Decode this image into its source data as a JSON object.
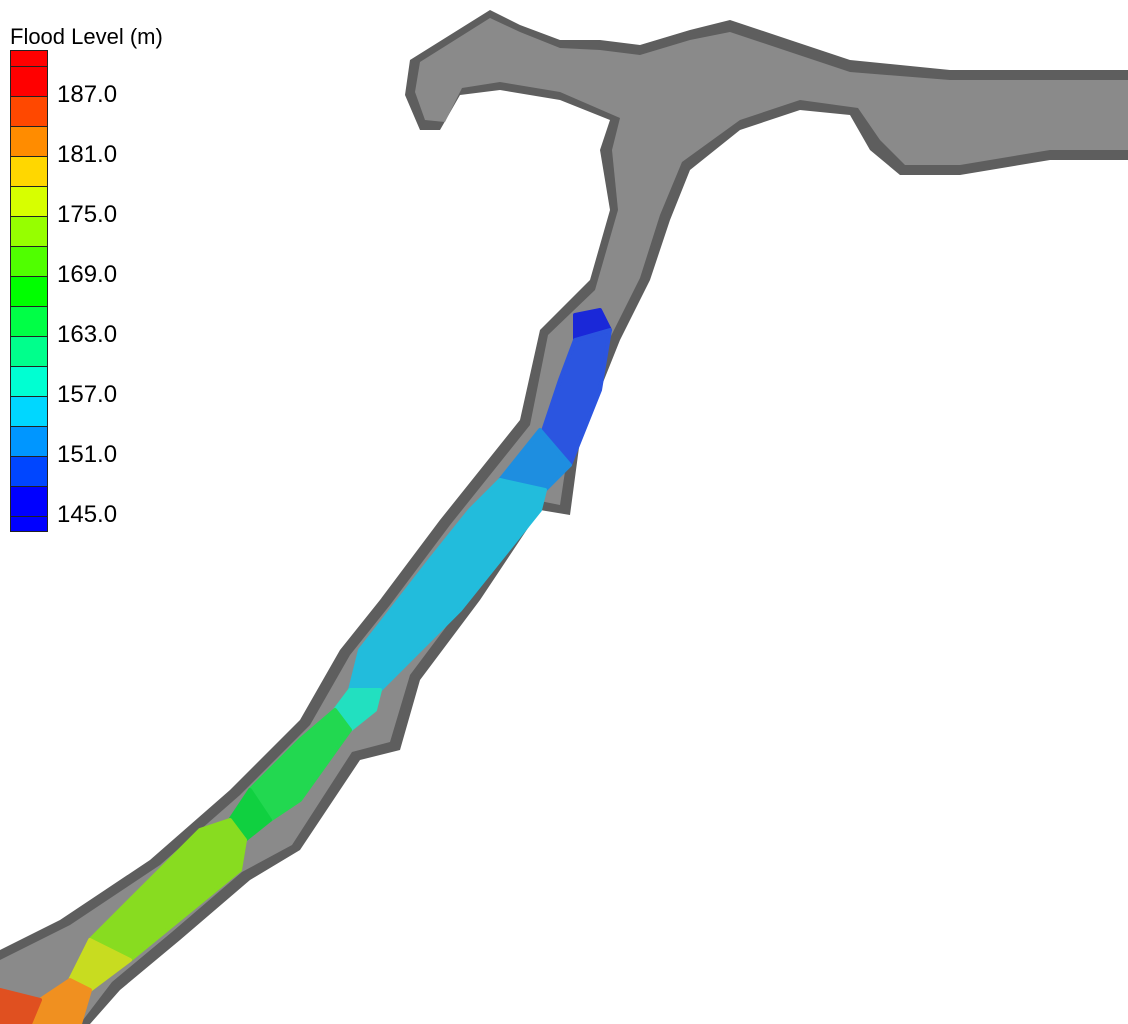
{
  "legend": {
    "title": "Flood Level (m)",
    "ticks": [
      "187.0",
      "181.0",
      "175.0",
      "169.0",
      "163.0",
      "157.0",
      "151.0",
      "145.0"
    ],
    "band_colors": [
      "#ff0000",
      "#ff0000",
      "#ff4800",
      "#ff8c00",
      "#ffd700",
      "#d7ff00",
      "#96ff00",
      "#50ff00",
      "#00ff00",
      "#00ff46",
      "#00ff8c",
      "#00ffd2",
      "#00d7ff",
      "#0096ff",
      "#0046ff",
      "#0000ff",
      "#0000ff"
    ],
    "min": 145.0,
    "max": 190.0,
    "interval": 3.0
  },
  "map": {
    "terrain_color": "#8a8a8a",
    "terrain_edge_color": "#5e5e5e",
    "flood_segments": [
      {
        "color": "#1a28d8"
      },
      {
        "color": "#2b55e0"
      },
      {
        "color": "#1e8ee0"
      },
      {
        "color": "#22bcdc"
      },
      {
        "color": "#22e0c0"
      },
      {
        "color": "#22d850"
      },
      {
        "color": "#10d040"
      },
      {
        "color": "#88dc20"
      },
      {
        "color": "#c8dc20"
      },
      {
        "color": "#f09020"
      },
      {
        "color": "#e05020"
      }
    ]
  }
}
